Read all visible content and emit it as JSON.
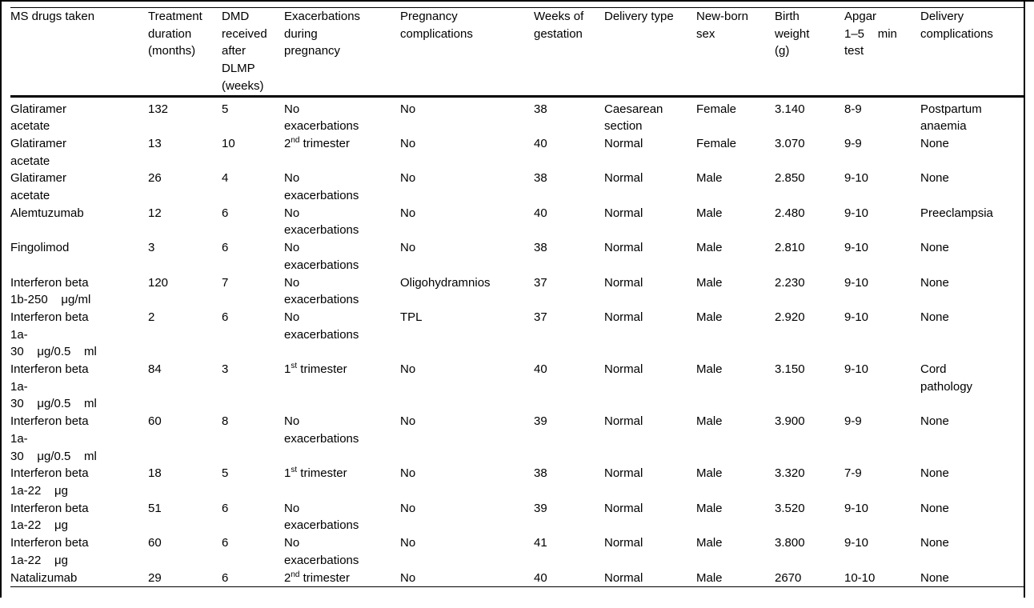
{
  "page": {
    "background_color": "#ffffff",
    "text_color": "#000000",
    "rule_color": "#000000"
  },
  "table": {
    "columns": [
      {
        "key": "drug",
        "label": "MS drugs taken"
      },
      {
        "key": "duration",
        "label": "Treatment\nduration\n(months)"
      },
      {
        "key": "dmd",
        "label": "DMD\nreceived\nafter\nDLMP\n(weeks)"
      },
      {
        "key": "exacerbations",
        "label": "Exacerbations\nduring\npregnancy"
      },
      {
        "key": "pregnancy_complications",
        "label": "Pregnancy\ncomplications"
      },
      {
        "key": "weeks",
        "label": "Weeks of\ngestation"
      },
      {
        "key": "delivery_type",
        "label": "Delivery type"
      },
      {
        "key": "sex",
        "label": "New-born\nsex"
      },
      {
        "key": "birth_weight",
        "label": "Birth\nweight\n(g)"
      },
      {
        "key": "apgar",
        "label": "Apgar\n1–5    min\ntest"
      },
      {
        "key": "delivery_complications",
        "label": "Delivery\ncomplications"
      }
    ],
    "rows": [
      {
        "drug": "Glatiramer\nacetate",
        "duration": "132",
        "dmd": "5",
        "exacerbations": "No\nexacerbations",
        "pregnancy_complications": "No",
        "weeks": "38",
        "delivery_type": "Caesarean\nsection",
        "sex": "Female",
        "birth_weight": "3.140",
        "apgar": "8-9",
        "delivery_complications": "Postpartum\nanaemia"
      },
      {
        "drug": "Glatiramer\nacetate",
        "duration": "13",
        "dmd": "10",
        "exacerbations": "2^{nd} trimester",
        "pregnancy_complications": "No",
        "weeks": "40",
        "delivery_type": "Normal",
        "sex": "Female",
        "birth_weight": "3.070",
        "apgar": "9-9",
        "delivery_complications": "None"
      },
      {
        "drug": "Glatiramer\nacetate",
        "duration": "26",
        "dmd": "4",
        "exacerbations": "No\nexacerbations",
        "pregnancy_complications": "No",
        "weeks": "38",
        "delivery_type": "Normal",
        "sex": "Male",
        "birth_weight": "2.850",
        "apgar": "9-10",
        "delivery_complications": "None"
      },
      {
        "drug": "Alemtuzumab",
        "duration": "12",
        "dmd": "6",
        "exacerbations": "No\nexacerbations",
        "pregnancy_complications": "No",
        "weeks": "40",
        "delivery_type": "Normal",
        "sex": "Male",
        "birth_weight": "2.480",
        "apgar": "9-10",
        "delivery_complications": "Preeclampsia"
      },
      {
        "drug": "Fingolimod",
        "duration": "3",
        "dmd": "6",
        "exacerbations": "No\nexacerbations",
        "pregnancy_complications": "No",
        "weeks": "38",
        "delivery_type": "Normal",
        "sex": "Male",
        "birth_weight": "2.810",
        "apgar": "9-10",
        "delivery_complications": "None"
      },
      {
        "drug": "Interferon beta\n1b-250    μg/ml",
        "duration": "120",
        "dmd": "7",
        "exacerbations": "No\nexacerbations",
        "pregnancy_complications": "Oligohydramnios",
        "weeks": "37",
        "delivery_type": "Normal",
        "sex": "Male",
        "birth_weight": "2.230",
        "apgar": "9-10",
        "delivery_complications": "None"
      },
      {
        "drug": "Interferon beta\n1a-\n30    μg/0.5    ml",
        "duration": "2",
        "dmd": "6",
        "exacerbations": "No\nexacerbations",
        "pregnancy_complications": "TPL",
        "weeks": "37",
        "delivery_type": "Normal",
        "sex": "Male",
        "birth_weight": "2.920",
        "apgar": "9-10",
        "delivery_complications": "None"
      },
      {
        "drug": "Interferon beta\n1a-\n30    μg/0.5    ml",
        "duration": "84",
        "dmd": "3",
        "exacerbations": "1^{st} trimester",
        "pregnancy_complications": "No",
        "weeks": "40",
        "delivery_type": "Normal",
        "sex": "Male",
        "birth_weight": "3.150",
        "apgar": "9-10",
        "delivery_complications": "Cord\npathology"
      },
      {
        "drug": "Interferon beta\n1a-\n30    μg/0.5    ml",
        "duration": "60",
        "dmd": "8",
        "exacerbations": "No\nexacerbations",
        "pregnancy_complications": "No",
        "weeks": "39",
        "delivery_type": "Normal",
        "sex": "Male",
        "birth_weight": "3.900",
        "apgar": "9-9",
        "delivery_complications": "None"
      },
      {
        "drug": "Interferon beta\n1a-22    μg",
        "duration": "18",
        "dmd": "5",
        "exacerbations": "1^{st} trimester",
        "pregnancy_complications": "No",
        "weeks": "38",
        "delivery_type": "Normal",
        "sex": "Male",
        "birth_weight": "3.320",
        "apgar": "7-9",
        "delivery_complications": "None"
      },
      {
        "drug": "Interferon beta\n1a-22    μg",
        "duration": "51",
        "dmd": "6",
        "exacerbations": "No\nexacerbations",
        "pregnancy_complications": "No",
        "weeks": "39",
        "delivery_type": "Normal",
        "sex": "Male",
        "birth_weight": "3.520",
        "apgar": "9-10",
        "delivery_complications": "None"
      },
      {
        "drug": "Interferon beta\n1a-22    μg",
        "duration": "60",
        "dmd": "6",
        "exacerbations": "No\nexacerbations",
        "pregnancy_complications": "No",
        "weeks": "41",
        "delivery_type": "Normal",
        "sex": "Male",
        "birth_weight": "3.800",
        "apgar": "9-10",
        "delivery_complications": "None"
      },
      {
        "drug": "Natalizumab",
        "duration": "29",
        "dmd": "6",
        "exacerbations": "2^{nd} trimester",
        "pregnancy_complications": "No",
        "weeks": "40",
        "delivery_type": "Normal",
        "sex": "Male",
        "birth_weight": "2670",
        "apgar": "10-10",
        "delivery_complications": "None"
      }
    ]
  }
}
